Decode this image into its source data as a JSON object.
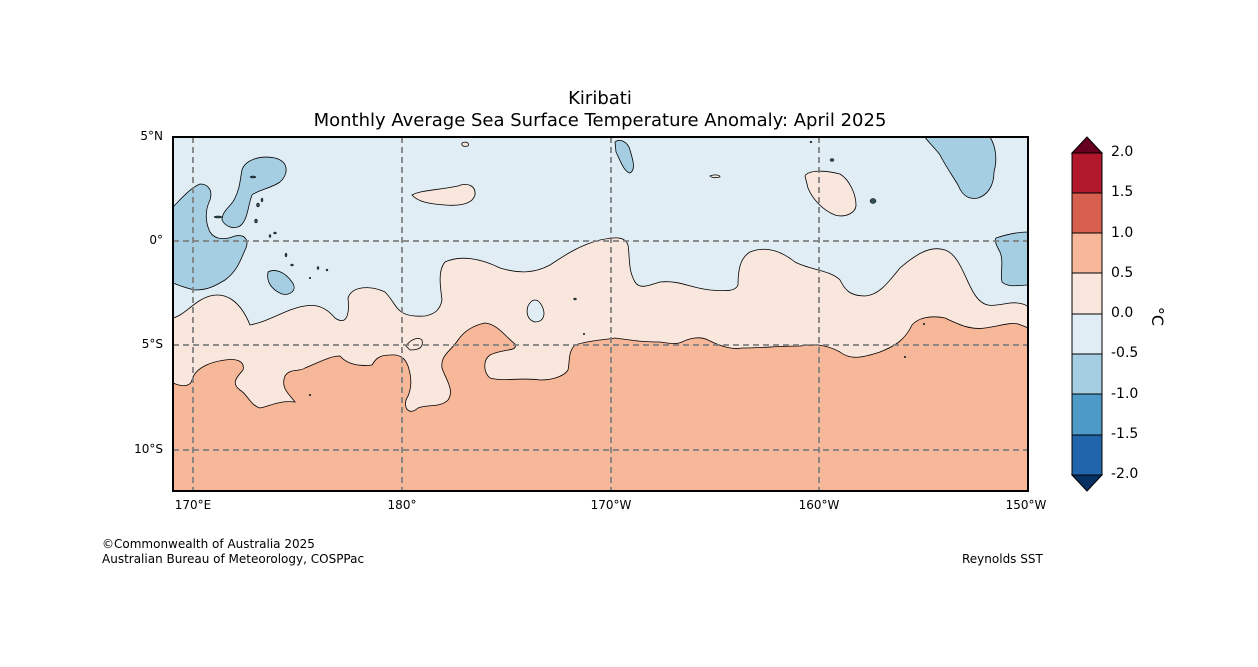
{
  "title": "Kiribati",
  "subtitle": "Monthly Average Sea Surface Temperature Anomaly: April 2025",
  "map": {
    "lat_labels": [
      "5°N",
      "0°",
      "5°S",
      "10°S"
    ],
    "lon_labels": [
      "170°E",
      "180°",
      "170°W",
      "160°W",
      "150°W"
    ],
    "lat_range": [
      -12,
      5
    ],
    "lon_range": [
      "169°E",
      "150°W"
    ]
  },
  "colorbar": {
    "unit": "°C",
    "ticks": [
      "2.0",
      "1.5",
      "1.0",
      "0.5",
      "0.0",
      "-0.5",
      "-1.0",
      "-1.5",
      "-2.0"
    ],
    "colors": {
      "above_2.0": "#67001f",
      "1.5_2.0": "#b2182b",
      "1.0_1.5": "#d6604d",
      "0.5_1.0": "#f4a582",
      "0.0_0.5": "#f9e6dd",
      "-0.5_0.0": "#e1edf4",
      "-1.0_-0.5": "#a6cee3",
      "-1.5_-1.0": "#4d9ac8",
      "-2.0_-1.5": "#2166ac",
      "below_-2.0": "#053061"
    }
  },
  "credit": {
    "line1": "©Commonwealth of Australia 2025",
    "line2": "Australian Bureau of Meteorology, COSPPac",
    "source": "Reynolds SST"
  }
}
